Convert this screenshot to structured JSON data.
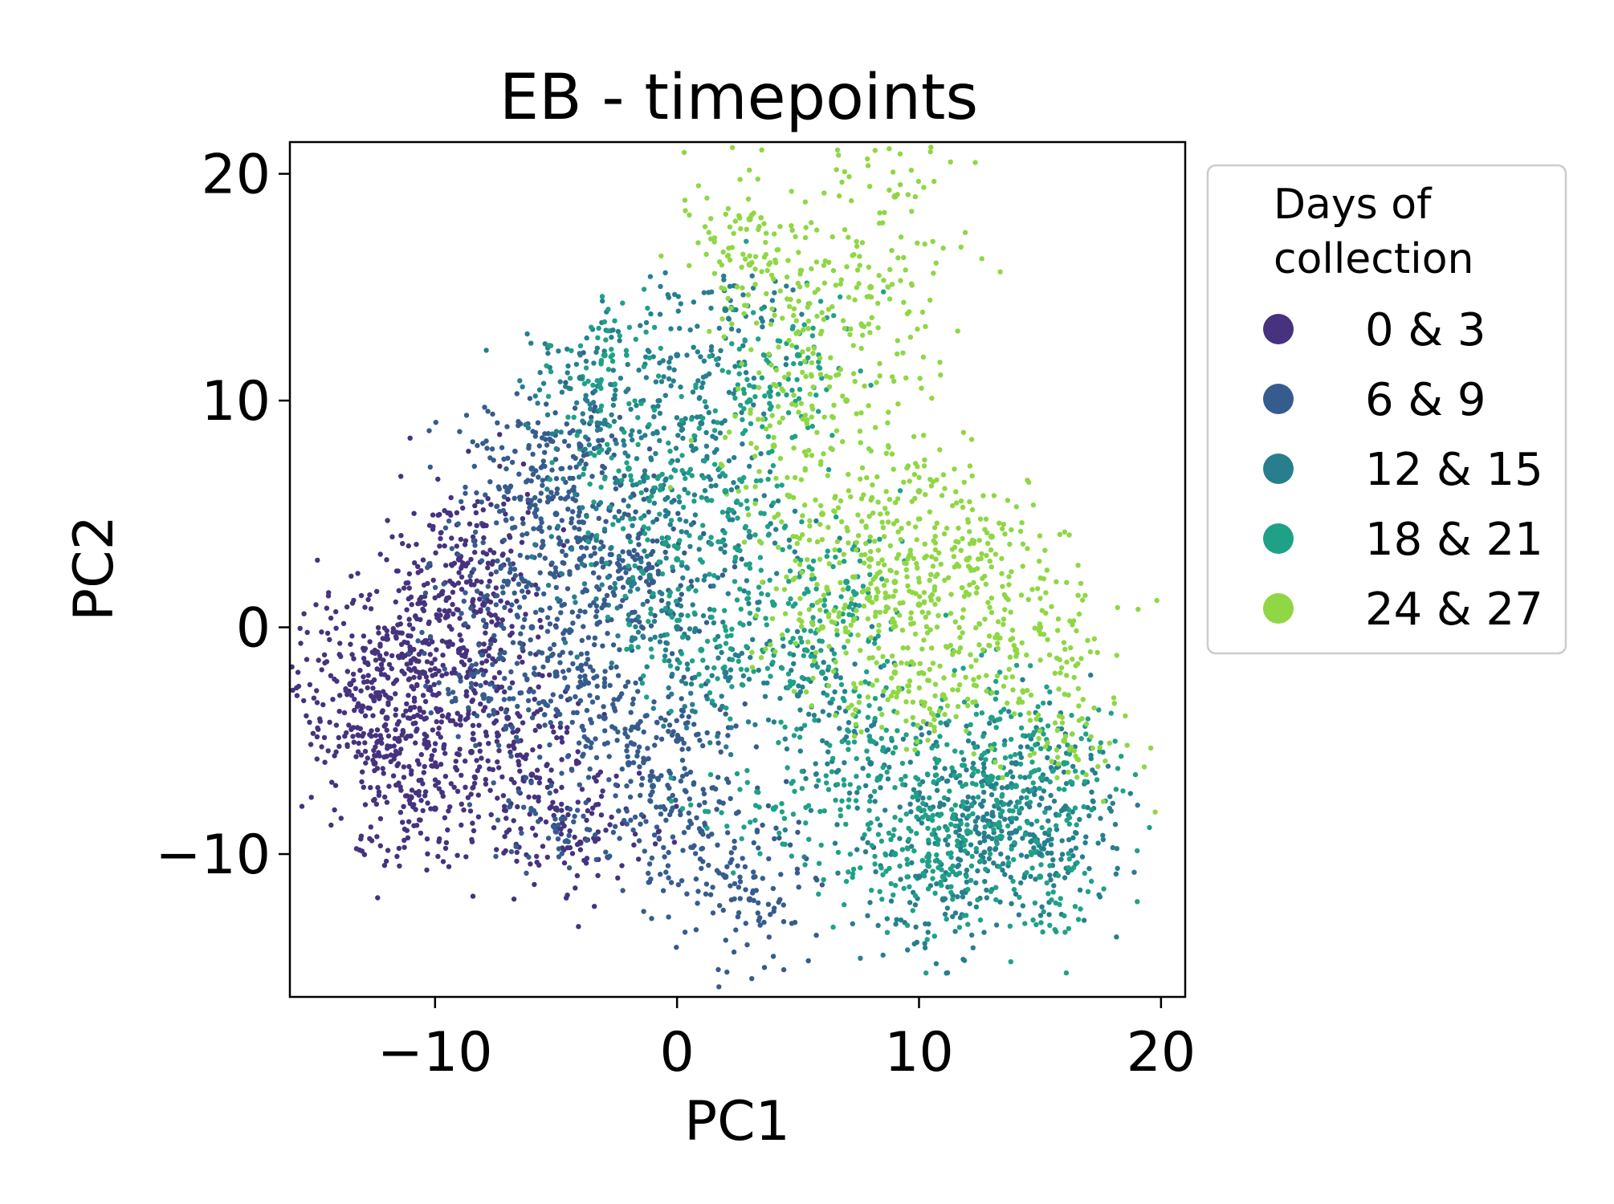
{
  "chart_data": {
    "type": "scatter",
    "title": "EB - timepoints",
    "xlabel": "PC1",
    "ylabel": "PC2",
    "xlim": [
      -16,
      21
    ],
    "ylim": [
      -16.3,
      21.4
    ],
    "xticks": [
      {
        "value": -10,
        "label": "−10"
      },
      {
        "value": 0,
        "label": "0"
      },
      {
        "value": 10,
        "label": "10"
      },
      {
        "value": 20,
        "label": "20"
      }
    ],
    "yticks": [
      {
        "value": -10,
        "label": "−10"
      },
      {
        "value": 0,
        "label": "0"
      },
      {
        "value": 10,
        "label": "10"
      },
      {
        "value": 20,
        "label": "20"
      }
    ],
    "grid": false,
    "legend": {
      "title_lines": [
        "Days of",
        "collection"
      ],
      "placement": "outside-right-top"
    },
    "series": [
      {
        "name": "0 & 3",
        "color": "#46327e",
        "points": [
          [
            -12,
            -4
          ],
          [
            -13,
            -3.5
          ],
          [
            -11.5,
            -5
          ],
          [
            -10.5,
            -2
          ],
          [
            -9,
            -1
          ],
          [
            -8,
            1
          ],
          [
            -9.5,
            0.5
          ],
          [
            -12.5,
            -6
          ],
          [
            -11,
            -7.5
          ],
          [
            -10,
            -8
          ],
          [
            -13.5,
            -2.5
          ],
          [
            -7,
            -4
          ],
          [
            -8.5,
            -5.5
          ],
          [
            -6,
            -6.5
          ],
          [
            -5,
            -8
          ],
          [
            -4,
            -9.5
          ],
          [
            -9,
            3
          ],
          [
            -8,
            4.5
          ],
          [
            -11,
            -1
          ],
          [
            -12,
            -0.5
          ]
        ]
      },
      {
        "name": "6 & 9",
        "color": "#365c8d",
        "points": [
          [
            -6,
            0
          ],
          [
            -5,
            -2
          ],
          [
            -4,
            3
          ],
          [
            -7,
            2
          ],
          [
            -3,
            -4
          ],
          [
            -2,
            -6
          ],
          [
            -5,
            5
          ],
          [
            -6,
            7
          ],
          [
            -4,
            8
          ],
          [
            -8,
            -3
          ],
          [
            -1,
            -7
          ],
          [
            1,
            -9
          ],
          [
            2,
            -11
          ],
          [
            -3,
            1
          ],
          [
            -2,
            4
          ],
          [
            0,
            -5
          ],
          [
            3,
            -12
          ],
          [
            -1,
            2
          ],
          [
            -7,
            6
          ],
          [
            -5,
            -9
          ]
        ]
      },
      {
        "name": "12 & 15",
        "color": "#277f8e",
        "points": [
          [
            -2,
            2
          ],
          [
            0,
            0
          ],
          [
            2,
            -2
          ],
          [
            -1,
            6
          ],
          [
            1,
            9
          ],
          [
            3,
            4
          ],
          [
            12,
            -8
          ],
          [
            14,
            -9
          ],
          [
            13,
            -7
          ],
          [
            15,
            -10
          ],
          [
            10,
            -11
          ],
          [
            16,
            -8
          ],
          [
            -3,
            9
          ],
          [
            0,
            12
          ],
          [
            5,
            -3
          ],
          [
            8,
            -6
          ],
          [
            11,
            -12
          ],
          [
            14,
            -6
          ],
          [
            2,
            14
          ],
          [
            -4,
            11
          ]
        ]
      },
      {
        "name": "18 & 21",
        "color": "#1fa187",
        "points": [
          [
            0,
            3
          ],
          [
            2,
            6
          ],
          [
            4,
            1
          ],
          [
            6,
            -2
          ],
          [
            8,
            -5
          ],
          [
            10,
            -8
          ],
          [
            12,
            -9
          ],
          [
            14,
            -7
          ],
          [
            16,
            -6
          ],
          [
            -2,
            7
          ],
          [
            3,
            10
          ],
          [
            5,
            12
          ],
          [
            9,
            -10
          ],
          [
            11,
            -11
          ],
          [
            15,
            -11
          ],
          [
            1,
            -1
          ],
          [
            7,
            2
          ],
          [
            -3,
            12
          ],
          [
            4,
            -8
          ],
          [
            13,
            -4
          ]
        ]
      },
      {
        "name": "24 & 27",
        "color": "#8fd744",
        "points": [
          [
            4,
            8
          ],
          [
            6,
            5
          ],
          [
            8,
            3
          ],
          [
            10,
            1
          ],
          [
            9,
            2
          ],
          [
            7,
            10
          ],
          [
            5,
            13
          ],
          [
            3,
            16
          ],
          [
            8,
            15
          ],
          [
            10,
            6
          ],
          [
            12,
            3
          ],
          [
            14,
            -1
          ],
          [
            6,
            0
          ],
          [
            9,
            -2
          ],
          [
            11,
            -3
          ],
          [
            13,
            4
          ],
          [
            3,
            18
          ],
          [
            9,
            19
          ],
          [
            15,
            0
          ],
          [
            16,
            -5
          ]
        ]
      }
    ]
  }
}
